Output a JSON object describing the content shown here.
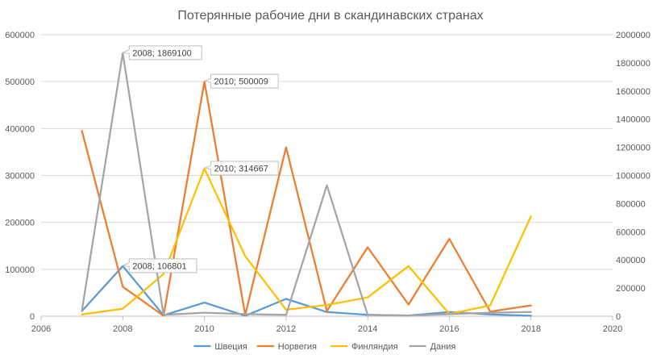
{
  "chart_data": {
    "type": "line",
    "title": "Потерянные рабочие дни в скандинавских странах",
    "x": [
      2007,
      2008,
      2009,
      2010,
      2011,
      2012,
      2013,
      2014,
      2015,
      2016,
      2017,
      2018
    ],
    "xlim": [
      2006,
      2020
    ],
    "x_ticks": [
      "2006",
      "2008",
      "2010",
      "2012",
      "2014",
      "2016",
      "2018",
      "2020"
    ],
    "ylim": [
      0,
      600000
    ],
    "y_ticks": [
      "0",
      "100000",
      "200000",
      "300000",
      "400000",
      "500000",
      "600000"
    ],
    "y2lim": [
      0,
      2000000
    ],
    "y2_ticks": [
      "0",
      "200000",
      "400000",
      "600000",
      "800000",
      "1000000",
      "1200000",
      "1400000",
      "1600000",
      "1800000",
      "2000000"
    ],
    "grid": "horizontal",
    "legend_position": "bottom",
    "series": [
      {
        "name": "Швеция",
        "color": "#5b9bd5",
        "axis": "left",
        "values": [
          11000,
          106801,
          2000,
          29000,
          1000,
          37000,
          9000,
          3000,
          1500,
          9000,
          4000,
          1000
        ]
      },
      {
        "name": "Норвегия",
        "color": "#ed7d31",
        "axis": "left",
        "values": [
          395000,
          63000,
          1000,
          500009,
          3000,
          360000,
          11000,
          147000,
          25000,
          165000,
          10000,
          23000
        ]
      },
      {
        "name": "Финляндия",
        "color": "#ffc000",
        "axis": "left",
        "values": [
          4000,
          16000,
          90000,
          314667,
          128000,
          14000,
          24000,
          40000,
          107000,
          5000,
          23000,
          213000
        ]
      },
      {
        "name": "Дания",
        "color": "#a5a5a5",
        "axis": "right",
        "values": [
          40000,
          1869100,
          10000,
          25000,
          15000,
          10000,
          930000,
          10000,
          5000,
          15000,
          25000,
          30000
        ]
      }
    ],
    "annotations": [
      {
        "text": "2008; 1869100",
        "series": 3,
        "index": 1
      },
      {
        "text": "2010; 500009",
        "series": 1,
        "index": 3
      },
      {
        "text": "2010; 314667",
        "series": 2,
        "index": 3
      },
      {
        "text": "2008; 106801",
        "series": 0,
        "index": 1
      }
    ]
  }
}
